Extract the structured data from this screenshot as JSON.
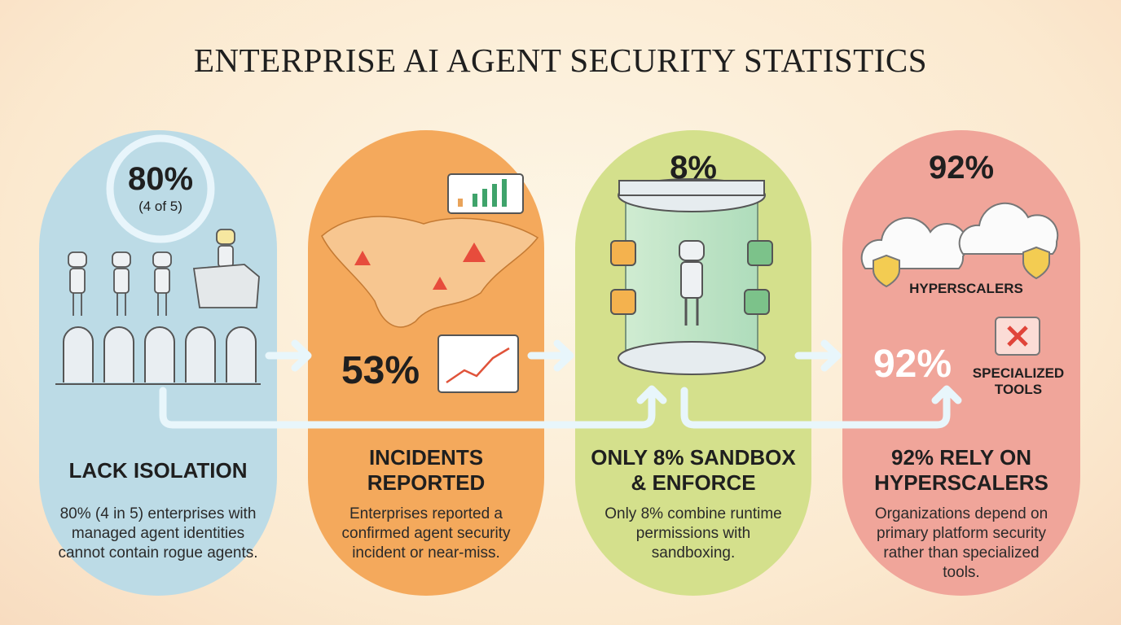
{
  "title": "ENTERPRISE AI AGENT SECURITY STATISTICS",
  "panels": [
    {
      "stat": "80%",
      "stat_note": "(4 of 5)",
      "heading": "LACK ISOLATION",
      "description": "80% (4 in 5) enterprises with managed agent identities cannot contain rogue agents."
    },
    {
      "stat": "53%",
      "heading": "INCIDENTS REPORTED",
      "description": "Enterprises reported a confirmed agent security incident or near-miss."
    },
    {
      "stat": "8%",
      "heading": "ONLY 8% SANDBOX & ENFORCE",
      "description": "Only 8% combine runtime permissions with sandboxing."
    },
    {
      "stat": "92%",
      "stat_label": "HYPERSCALERS",
      "stat2": "92%",
      "stat2_label": "SPECIALIZED TOOLS",
      "heading": "92% RELY ON HYPERSCALERS",
      "description": "Organizations depend on primary platform security rather than specialized tools."
    }
  ]
}
